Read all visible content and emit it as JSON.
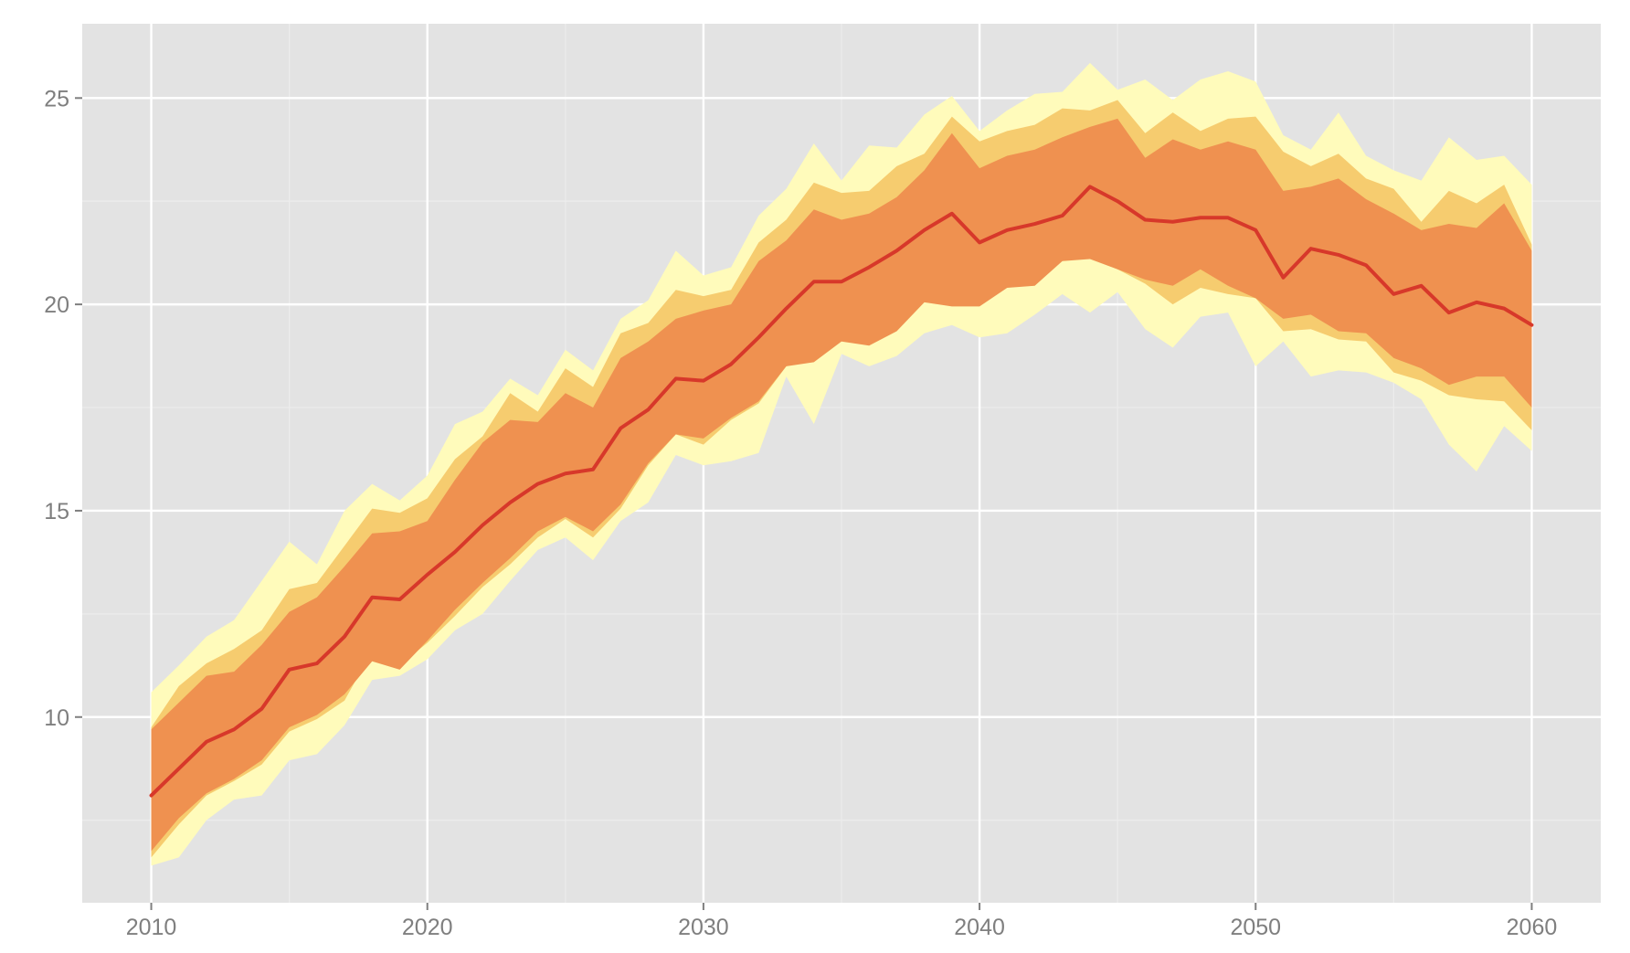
{
  "chart_data": {
    "type": "area",
    "title": "",
    "xlabel": "",
    "ylabel": "",
    "xlim": [
      2007.5,
      2062.5
    ],
    "ylim": [
      5.5,
      26.8
    ],
    "x_ticks": [
      2010,
      2020,
      2030,
      2040,
      2050,
      2060
    ],
    "y_ticks": [
      10,
      15,
      20,
      25
    ],
    "x_tick_labels": [
      "2010",
      "2020",
      "2030",
      "2040",
      "2050",
      "2060"
    ],
    "y_tick_labels": [
      "10",
      "15",
      "20",
      "25"
    ],
    "grid": true,
    "legend": "none",
    "colors": {
      "panel_background": "#e3e3e3",
      "grid_major": "#ffffff",
      "grid_minor": "#ececec",
      "outer_band": "#fffbbb",
      "middle_band": "#f6cc6f",
      "inner_band": "#ef9150",
      "median_line": "#d7382a",
      "tick_label": "#7f7f7f",
      "tick_mark": "#7f7f7f"
    },
    "x": [
      2010,
      2011,
      2012,
      2013,
      2014,
      2015,
      2016,
      2017,
      2018,
      2019,
      2020,
      2021,
      2022,
      2023,
      2024,
      2025,
      2026,
      2027,
      2028,
      2029,
      2030,
      2031,
      2032,
      2033,
      2034,
      2035,
      2036,
      2037,
      2038,
      2039,
      2040,
      2041,
      2042,
      2043,
      2044,
      2045,
      2046,
      2047,
      2048,
      2049,
      2050,
      2051,
      2052,
      2053,
      2054,
      2055,
      2056,
      2057,
      2058,
      2059,
      2060
    ],
    "median": [
      8.1,
      8.75,
      9.4,
      9.7,
      10.2,
      11.15,
      11.3,
      11.95,
      12.9,
      12.85,
      13.45,
      14.0,
      14.65,
      15.2,
      15.65,
      15.9,
      16.0,
      17.0,
      17.45,
      18.2,
      18.15,
      18.55,
      19.2,
      19.9,
      20.55,
      20.55,
      20.9,
      21.3,
      21.8,
      22.2,
      21.5,
      21.8,
      21.95,
      22.15,
      22.85,
      22.5,
      22.05,
      22.0,
      22.1,
      22.1,
      21.8,
      20.65,
      21.35,
      21.2,
      20.95,
      20.25,
      20.45,
      19.8,
      20.05,
      19.9,
      19.5
    ],
    "bands": [
      {
        "level": "outer",
        "lower": [
          6.4,
          6.6,
          7.5,
          8.0,
          8.1,
          8.95,
          9.1,
          9.8,
          10.9,
          11.0,
          11.4,
          12.1,
          12.5,
          13.3,
          14.05,
          14.35,
          13.8,
          14.75,
          15.2,
          16.35,
          16.1,
          16.2,
          16.4,
          18.25,
          17.1,
          18.8,
          18.5,
          18.75,
          19.3,
          19.5,
          19.2,
          19.3,
          19.75,
          20.25,
          19.8,
          20.3,
          19.4,
          18.95,
          19.7,
          19.8,
          18.5,
          19.1,
          18.25,
          18.4,
          18.35,
          18.1,
          17.7,
          16.6,
          15.95,
          17.05,
          16.45
        ],
        "upper": [
          10.6,
          11.25,
          11.95,
          12.35,
          13.3,
          14.25,
          13.7,
          15.0,
          15.65,
          15.25,
          15.85,
          17.1,
          17.4,
          18.2,
          17.8,
          18.9,
          18.4,
          19.65,
          20.1,
          21.3,
          20.7,
          20.9,
          22.15,
          22.8,
          23.9,
          23.0,
          23.85,
          23.8,
          24.6,
          25.05,
          24.2,
          24.7,
          25.1,
          25.15,
          25.85,
          25.2,
          25.45,
          24.95,
          25.45,
          25.65,
          25.4,
          24.1,
          23.75,
          24.65,
          23.6,
          23.25,
          23.0,
          24.05,
          23.5,
          23.6,
          22.9
        ]
      },
      {
        "level": "middle",
        "lower": [
          6.6,
          7.4,
          8.1,
          8.45,
          8.85,
          9.65,
          9.95,
          10.4,
          11.6,
          11.25,
          11.8,
          12.45,
          13.15,
          13.7,
          14.35,
          14.8,
          14.35,
          15.05,
          16.1,
          16.85,
          16.6,
          17.2,
          17.6,
          18.5,
          18.7,
          19.2,
          19.05,
          19.5,
          20.2,
          20.05,
          20.0,
          20.45,
          20.5,
          21.1,
          21.15,
          20.85,
          20.5,
          20.0,
          20.4,
          20.25,
          20.15,
          19.35,
          19.4,
          19.15,
          19.1,
          18.35,
          18.15,
          17.8,
          17.7,
          17.65,
          16.95
        ],
        "upper": [
          9.75,
          10.75,
          11.3,
          11.65,
          12.1,
          13.1,
          13.25,
          14.15,
          15.05,
          14.95,
          15.3,
          16.25,
          16.8,
          17.85,
          17.4,
          18.45,
          18.0,
          19.3,
          19.55,
          20.35,
          20.2,
          20.35,
          21.5,
          22.05,
          22.95,
          22.7,
          22.75,
          23.35,
          23.65,
          24.55,
          23.95,
          24.2,
          24.35,
          24.75,
          24.7,
          24.95,
          24.15,
          24.65,
          24.2,
          24.5,
          24.55,
          23.7,
          23.35,
          23.65,
          23.05,
          22.8,
          22.0,
          22.75,
          22.45,
          22.9,
          21.45
        ]
      },
      {
        "level": "inner",
        "lower": [
          6.75,
          7.55,
          8.15,
          8.5,
          8.95,
          9.75,
          10.05,
          10.55,
          11.35,
          11.15,
          11.85,
          12.6,
          13.25,
          13.85,
          14.5,
          14.85,
          14.5,
          15.15,
          16.15,
          16.85,
          16.75,
          17.25,
          17.65,
          18.5,
          18.6,
          19.1,
          19.0,
          19.35,
          20.05,
          19.95,
          19.95,
          20.4,
          20.45,
          21.05,
          21.1,
          20.85,
          20.6,
          20.45,
          20.85,
          20.45,
          20.15,
          19.65,
          19.75,
          19.35,
          19.3,
          18.7,
          18.45,
          18.05,
          18.25,
          18.25,
          17.5
        ],
        "upper": [
          9.7,
          10.35,
          11.0,
          11.1,
          11.75,
          12.55,
          12.9,
          13.65,
          14.45,
          14.5,
          14.75,
          15.75,
          16.65,
          17.2,
          17.15,
          17.85,
          17.5,
          18.7,
          19.1,
          19.65,
          19.85,
          20.0,
          21.05,
          21.55,
          22.3,
          22.05,
          22.2,
          22.6,
          23.25,
          24.15,
          23.3,
          23.6,
          23.75,
          24.05,
          24.3,
          24.5,
          23.55,
          24.0,
          23.75,
          23.95,
          23.75,
          22.75,
          22.85,
          23.05,
          22.55,
          22.2,
          21.8,
          21.95,
          21.85,
          22.45,
          21.3
        ]
      }
    ]
  }
}
